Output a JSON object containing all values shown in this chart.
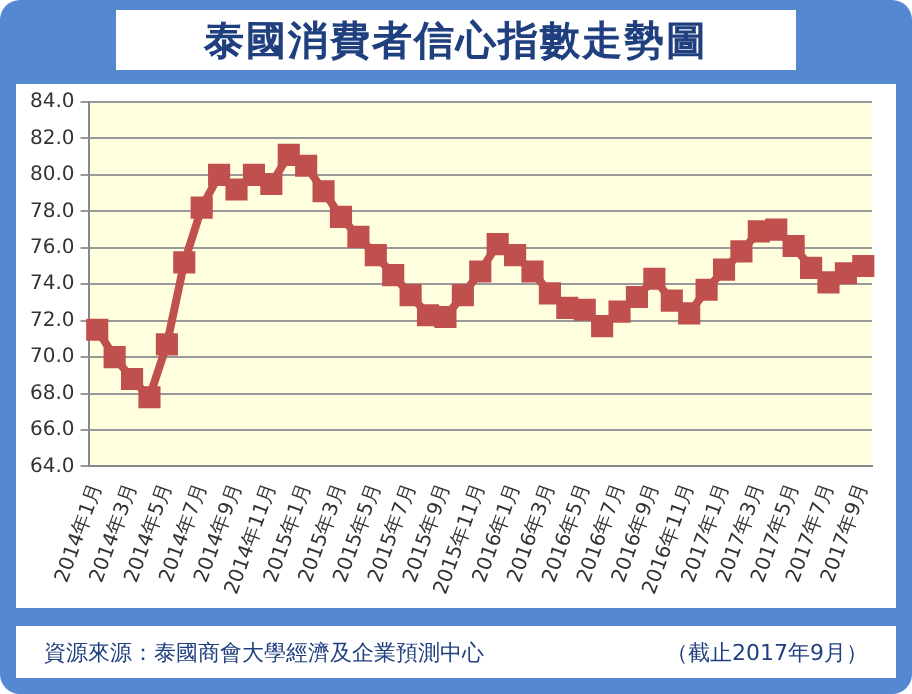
{
  "chart_data": {
    "type": "line",
    "title": "泰國消費者信心指數走勢圖",
    "categories": [
      "2014年1月",
      null,
      "2014年3月",
      null,
      "2014年5月",
      null,
      "2014年7月",
      null,
      "2014年9月",
      null,
      "2014年11月",
      null,
      "2015年1月",
      null,
      "2015年3月",
      null,
      "2015年5月",
      null,
      "2015年7月",
      null,
      "2015年9月",
      null,
      "2015年11月",
      null,
      "2016年1月",
      null,
      "2016年3月",
      null,
      "2016年5月",
      null,
      "2016年7月",
      null,
      "2016年9月",
      null,
      "2016年11月",
      null,
      "2017年1月",
      null,
      "2017年3月",
      null,
      "2017年5月",
      null,
      "2017年7月",
      null,
      "2017年9月"
    ],
    "series": [
      {
        "color": "#c0504d",
        "values": [
          71.5,
          70.0,
          68.8,
          67.8,
          70.7,
          75.2,
          78.2,
          80.0,
          79.2,
          80.0,
          79.5,
          81.1,
          80.5,
          79.1,
          77.7,
          76.6,
          75.6,
          74.5,
          73.4,
          72.3,
          72.2,
          73.4,
          74.7,
          76.2,
          75.6,
          74.7,
          73.5,
          72.7,
          72.6,
          71.7,
          72.5,
          73.3,
          74.3,
          73.1,
          72.4,
          73.7,
          74.8,
          75.8,
          76.9,
          77.0,
          76.1,
          74.9,
          74.1,
          74.6,
          75.0
        ]
      }
    ],
    "ylim": [
      64,
      84
    ],
    "yticks": [
      {
        "value": 64,
        "label": "64.0"
      },
      {
        "value": 66,
        "label": "66.0"
      },
      {
        "value": 68,
        "label": "68.0"
      },
      {
        "value": 70,
        "label": "70.0"
      },
      {
        "value": 72,
        "label": "72.0"
      },
      {
        "value": 74,
        "label": "74.0"
      },
      {
        "value": 76,
        "label": "76.0"
      },
      {
        "value": 78,
        "label": "78.0"
      },
      {
        "value": 80,
        "label": "80.0"
      },
      {
        "value": 82,
        "label": "82.0"
      },
      {
        "value": 84,
        "label": "84.0"
      }
    ],
    "grid": "y",
    "legend": false,
    "marker": "square",
    "line_style": "solid",
    "annotations": [
      "資源來源：泰國商會大學經濟及企業預測中心",
      "（截止2017年9月）"
    ]
  }
}
